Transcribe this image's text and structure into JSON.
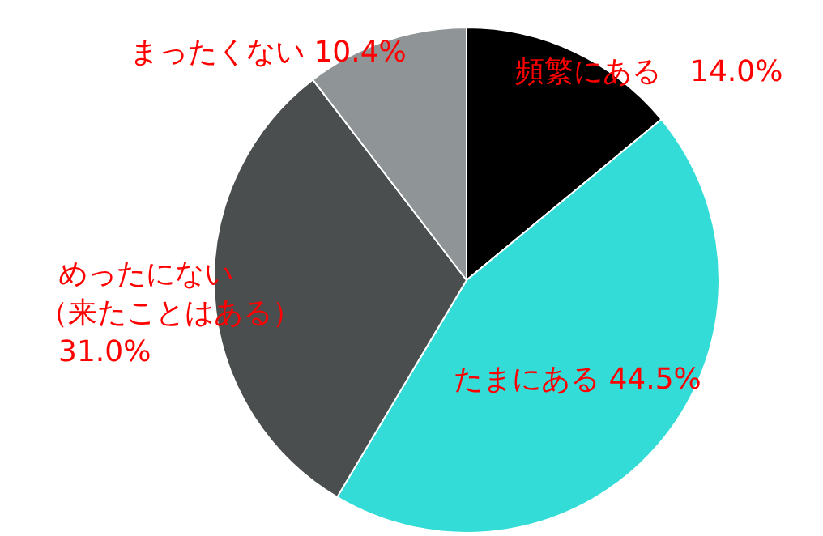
{
  "chart_data": {
    "type": "pie",
    "categories": [
      "頻繁にある",
      "たまにある",
      "めったにない（来たことはある）",
      "まったくない"
    ],
    "values": [
      14.0,
      44.5,
      31.0,
      10.4
    ],
    "colors": [
      "#000000",
      "#33dcd7",
      "#4a4e4e",
      "#8f9497"
    ],
    "value_labels": [
      "14.0%",
      "44.5%",
      "31.0%",
      "10.4%"
    ]
  }
}
